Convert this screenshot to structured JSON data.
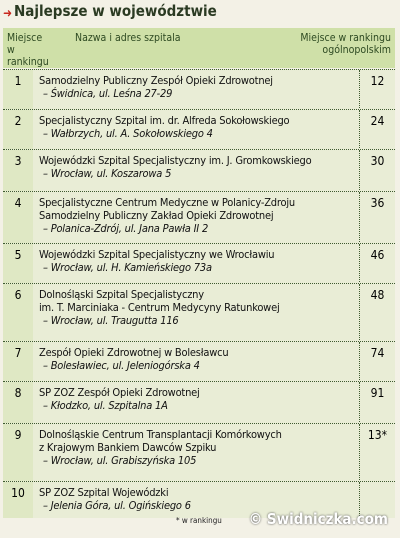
{
  "header": {
    "title": "Najlepsze w województwie"
  },
  "table": {
    "columns": [
      "Miejsce w rankingu",
      "Nazwa i adres szpitala",
      "Miejsce w rankingu ogólnopolskim"
    ],
    "rows": [
      {
        "rank": "1",
        "name": [
          "Samodzielny Publiczny Zespół Opieki Zdrowotnej"
        ],
        "address": "– Świdnica, ul. Leśna 27-29",
        "national": "12"
      },
      {
        "rank": "2",
        "name": [
          "Specjalistyczny Szpital im. dr. Alfreda Sokołowskiego"
        ],
        "address": "– Wałbrzych, ul. A. Sokołowskiego 4",
        "national": "24"
      },
      {
        "rank": "3",
        "name": [
          "Wojewódzki Szpital Specjalistyczny im. J. Gromkowskiego"
        ],
        "address": "– Wrocław, ul. Koszarowa 5",
        "national": "30"
      },
      {
        "rank": "4",
        "name": [
          "Specjalistyczne Centrum Medyczne w Polanicy-Zdroju",
          "Samodzielny Publiczny Zakład Opieki Zdrowotnej"
        ],
        "address": "– Polanica-Zdrój, ul. Jana Pawła II 2",
        "national": "36"
      },
      {
        "rank": "5",
        "name": [
          "Wojewódzki Szpital Specjalistyczny we Wrocławiu"
        ],
        "address": "– Wrocław, ul. H. Kamieńskiego 73a",
        "national": "46"
      },
      {
        "rank": "6",
        "name": [
          "Dolnośląski Szpital Specjalistyczny",
          "im. T. Marciniaka - Centrum Medycyny Ratunkowej"
        ],
        "address": "– Wrocław, ul. Traugutta 116",
        "national": "48"
      },
      {
        "rank": "7",
        "name": [
          "Zespół Opieki Zdrowotnej w Bolesławcu"
        ],
        "address": "– Bolesławiec, ul. Jeleniogórska 4",
        "national": "74"
      },
      {
        "rank": "8",
        "name": [
          "SP ZOZ Zespół Opieki Zdrowotnej"
        ],
        "address": "– Kłodzko, ul. Szpitalna 1A",
        "national": "91"
      },
      {
        "rank": "9",
        "name": [
          "Dolnośląskie Centrum Transplantacji Komórkowych",
          "z Krajowym Bankiem Dawców Szpiku"
        ],
        "address": "– Wrocław, ul. Grabiszyńska 105",
        "national": "13*"
      },
      {
        "rank": "10",
        "name": [
          "SP ZOZ Szpital Wojewódzki"
        ],
        "address": "– Jelenia Góra, ul. Ogińskiego 6"
      }
    ]
  },
  "footnote": "* w rankingu",
  "watermark": "© Swidniczka.com"
}
